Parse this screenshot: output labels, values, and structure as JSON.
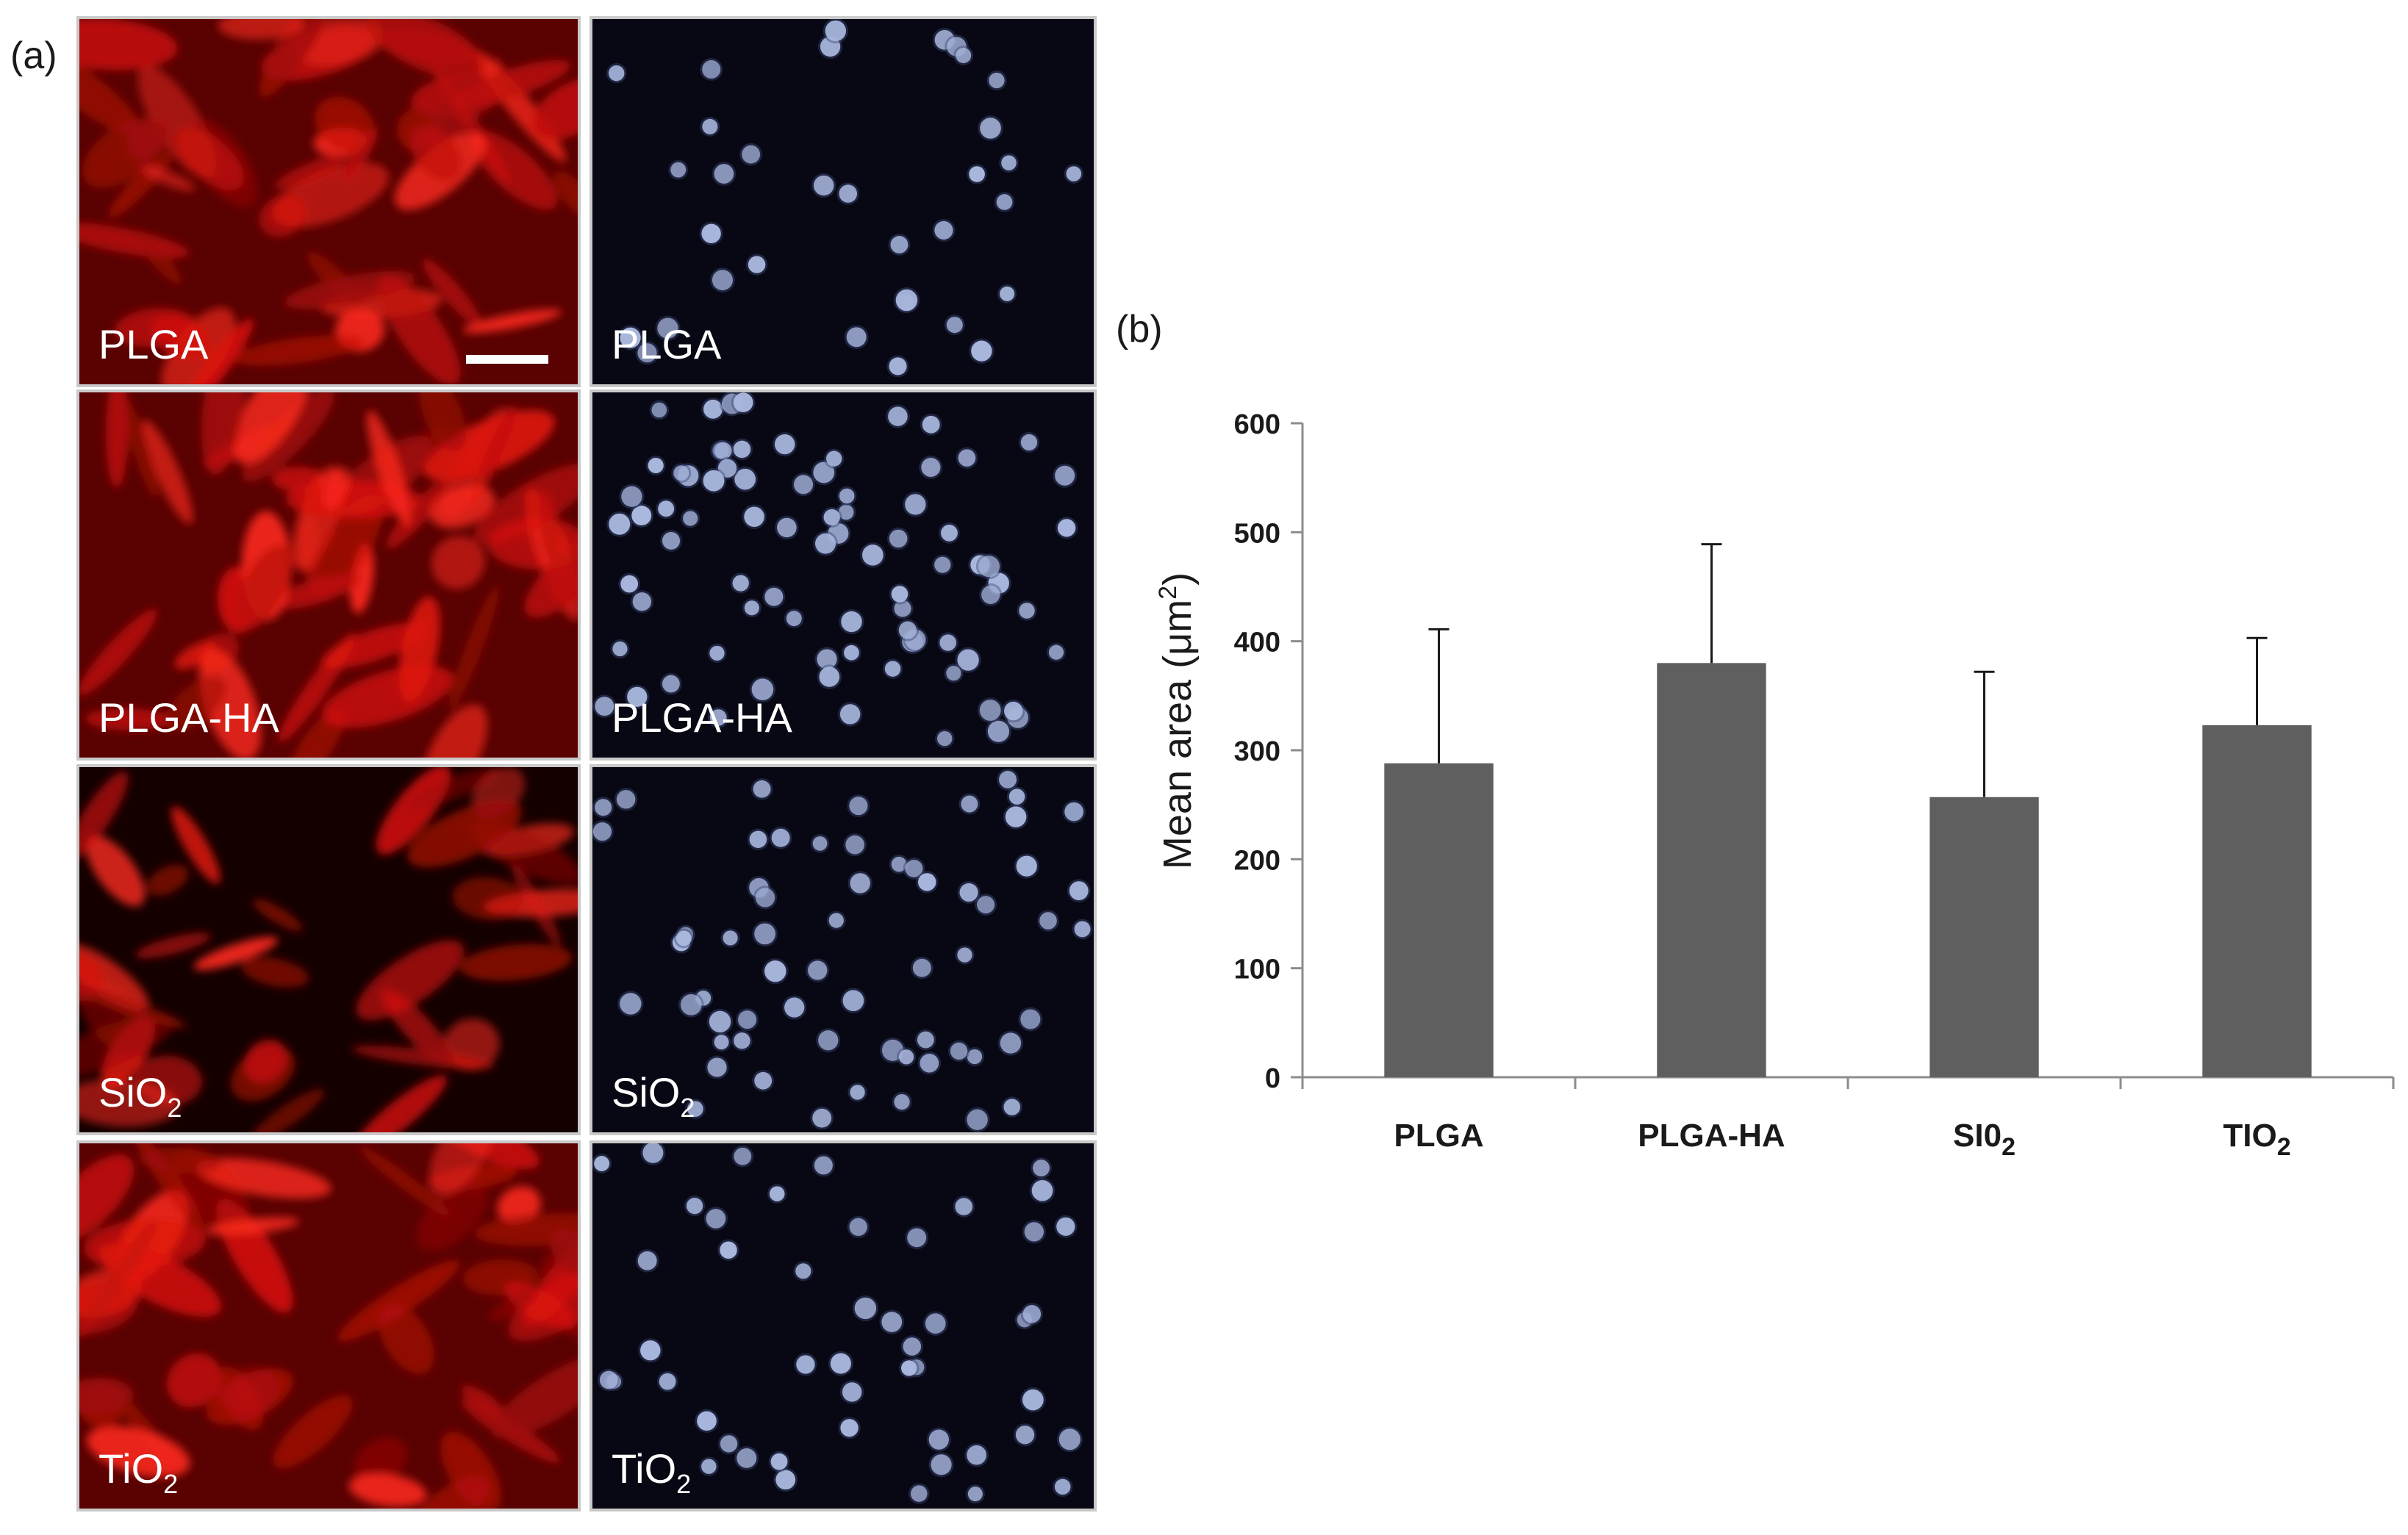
{
  "figure": {
    "label_a": "(a)",
    "label_b": "(b)"
  },
  "micrographs": {
    "rows": [
      {
        "key": "plga",
        "label_main": "PLGA",
        "label_sub": "",
        "scale_bar": true
      },
      {
        "key": "plgaha",
        "label_main": "PLGA-HA",
        "label_sub": "",
        "scale_bar": false
      },
      {
        "key": "sio2",
        "label_main": "SiO",
        "label_sub": "2",
        "scale_bar": false
      },
      {
        "key": "tio2",
        "label_main": "TiO",
        "label_sub": "2",
        "scale_bar": false
      }
    ],
    "stain_colors": {
      "cytoskeleton": "#e0140e",
      "nuclei": "#aab8de"
    }
  },
  "chart_data": {
    "type": "bar",
    "categories": [
      "PLGA",
      "PLGA-HA",
      "SI0",
      "TIO"
    ],
    "category_subscripts": [
      "",
      "",
      "2",
      "2"
    ],
    "values": [
      288,
      380,
      257,
      323
    ],
    "error_upper": [
      123,
      109,
      115,
      80
    ],
    "ylabel": "Mean area (μm",
    "ylabel_superscript": "2",
    "ylabel_suffix": ")",
    "ylim": [
      0,
      600
    ],
    "yticks": [
      0,
      100,
      200,
      300,
      400,
      500,
      600
    ],
    "bar_color": "#5f5f5f",
    "grid": false,
    "legend": "none"
  }
}
